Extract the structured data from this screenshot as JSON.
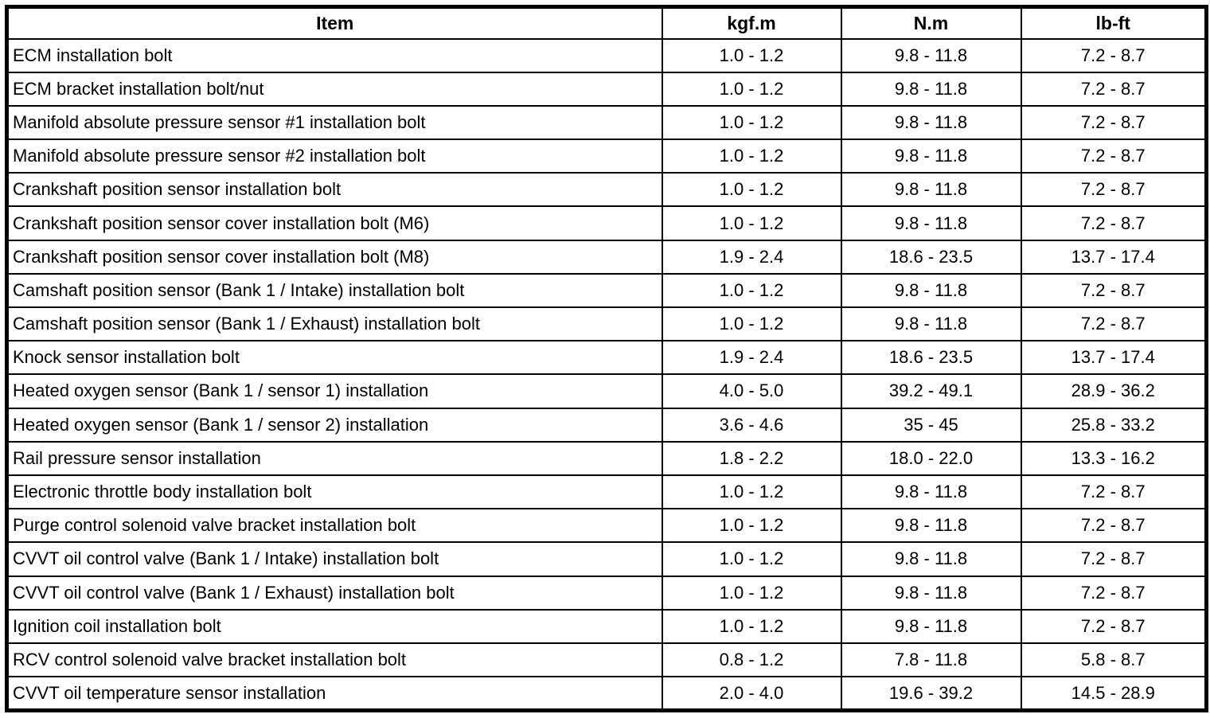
{
  "table": {
    "columns": [
      "Item",
      "kgf.m",
      "N.m",
      "lb-ft"
    ],
    "rows": [
      {
        "item": "ECM installation bolt",
        "kgfm": "1.0 - 1.2",
        "nm": "9.8 - 11.8",
        "lbft": "7.2 - 8.7"
      },
      {
        "item": "ECM bracket installation bolt/nut",
        "kgfm": "1.0 - 1.2",
        "nm": "9.8 - 11.8",
        "lbft": "7.2 - 8.7"
      },
      {
        "item": "Manifold absolute pressure sensor #1 installation bolt",
        "kgfm": "1.0 - 1.2",
        "nm": "9.8 - 11.8",
        "lbft": "7.2 - 8.7"
      },
      {
        "item": "Manifold absolute pressure sensor #2 installation bolt",
        "kgfm": "1.0 - 1.2",
        "nm": "9.8 - 11.8",
        "lbft": "7.2 - 8.7"
      },
      {
        "item": "Crankshaft position sensor installation bolt",
        "kgfm": "1.0 - 1.2",
        "nm": "9.8 - 11.8",
        "lbft": "7.2 - 8.7"
      },
      {
        "item": "Crankshaft position sensor cover installation bolt (M6)",
        "kgfm": "1.0 - 1.2",
        "nm": "9.8 - 11.8",
        "lbft": "7.2 - 8.7"
      },
      {
        "item": "Crankshaft position sensor cover installation bolt (M8)",
        "kgfm": "1.9 - 2.4",
        "nm": "18.6 - 23.5",
        "lbft": "13.7 - 17.4"
      },
      {
        "item": "Camshaft position sensor (Bank 1 / Intake) installation bolt",
        "kgfm": "1.0 - 1.2",
        "nm": "9.8 - 11.8",
        "lbft": "7.2 - 8.7"
      },
      {
        "item": "Camshaft position sensor (Bank 1 / Exhaust) installation bolt",
        "kgfm": "1.0 - 1.2",
        "nm": "9.8 - 11.8",
        "lbft": "7.2 - 8.7"
      },
      {
        "item": "Knock sensor installation bolt",
        "kgfm": "1.9 - 2.4",
        "nm": "18.6 - 23.5",
        "lbft": "13.7 - 17.4"
      },
      {
        "item": "Heated oxygen sensor (Bank 1 / sensor 1) installation",
        "kgfm": "4.0 - 5.0",
        "nm": "39.2 - 49.1",
        "lbft": "28.9 - 36.2"
      },
      {
        "item": "Heated oxygen sensor (Bank 1 / sensor 2) installation",
        "kgfm": "3.6 - 4.6",
        "nm": "35 - 45",
        "lbft": "25.8 - 33.2"
      },
      {
        "item": "Rail pressure sensor installation",
        "kgfm": "1.8 - 2.2",
        "nm": "18.0 - 22.0",
        "lbft": "13.3 - 16.2"
      },
      {
        "item": "Electronic throttle body installation bolt",
        "kgfm": "1.0 - 1.2",
        "nm": "9.8 - 11.8",
        "lbft": "7.2 - 8.7"
      },
      {
        "item": "Purge control solenoid valve bracket installation bolt",
        "kgfm": "1.0 - 1.2",
        "nm": "9.8 - 11.8",
        "lbft": "7.2 - 8.7"
      },
      {
        "item": "CVVT oil control valve (Bank 1 / Intake) installation bolt",
        "kgfm": "1.0 - 1.2",
        "nm": "9.8 - 11.8",
        "lbft": "7.2 - 8.7"
      },
      {
        "item": "CVVT oil control valve (Bank 1 / Exhaust) installation bolt",
        "kgfm": "1.0 - 1.2",
        "nm": "9.8 - 11.8",
        "lbft": "7.2 - 8.7"
      },
      {
        "item": "Ignition coil installation bolt",
        "kgfm": "1.0 - 1.2",
        "nm": "9.8 - 11.8",
        "lbft": "7.2 - 8.7"
      },
      {
        "item": "RCV control solenoid valve bracket installation bolt",
        "kgfm": "0.8 - 1.2",
        "nm": "7.8 - 11.8",
        "lbft": "5.8 - 8.7"
      },
      {
        "item": "CVVT oil temperature sensor installation",
        "kgfm": "2.0 - 4.0",
        "nm": "19.6 - 39.2",
        "lbft": "14.5 - 28.9"
      }
    ],
    "colors": {
      "border": "#000000",
      "background": "#ffffff",
      "text": "#000000"
    }
  }
}
